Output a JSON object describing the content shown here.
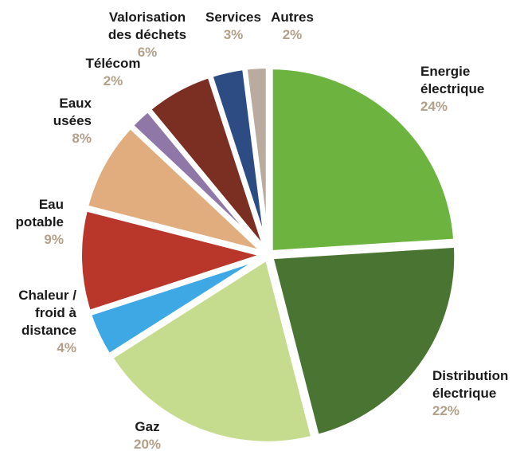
{
  "chart_data": {
    "type": "pie",
    "slices": [
      {
        "label": [
          "Energie",
          "électrique"
        ],
        "value": 24,
        "value_label": "24%",
        "color": "#6db33f"
      },
      {
        "label": [
          "Distribution",
          "électrique"
        ],
        "value": 22,
        "value_label": "22%",
        "color": "#4a7431"
      },
      {
        "label": [
          "Gaz"
        ],
        "value": 20,
        "value_label": "20%",
        "color": "#c5dc8f"
      },
      {
        "label": [
          "Chaleur /",
          "froid à",
          "distance"
        ],
        "value": 4,
        "value_label": "4%",
        "color": "#3ea8e5"
      },
      {
        "label": [
          "Eau",
          "potable"
        ],
        "value": 9,
        "value_label": "9%",
        "color": "#b9372a"
      },
      {
        "label": [
          "Eaux",
          "usées"
        ],
        "value": 8,
        "value_label": "8%",
        "color": "#e2ad7e"
      },
      {
        "label": [
          "Télécom"
        ],
        "value": 2,
        "value_label": "2%",
        "color": "#8f78a8"
      },
      {
        "label": [
          "Valorisation",
          "des déchets"
        ],
        "value": 6,
        "value_label": "6%",
        "color": "#7a2f22"
      },
      {
        "label": [
          "Services"
        ],
        "value": 3,
        "value_label": "3%",
        "color": "#2d4c84"
      },
      {
        "label": [
          "Autres"
        ],
        "value": 2,
        "value_label": "2%",
        "color": "#b9ab9d"
      }
    ]
  }
}
